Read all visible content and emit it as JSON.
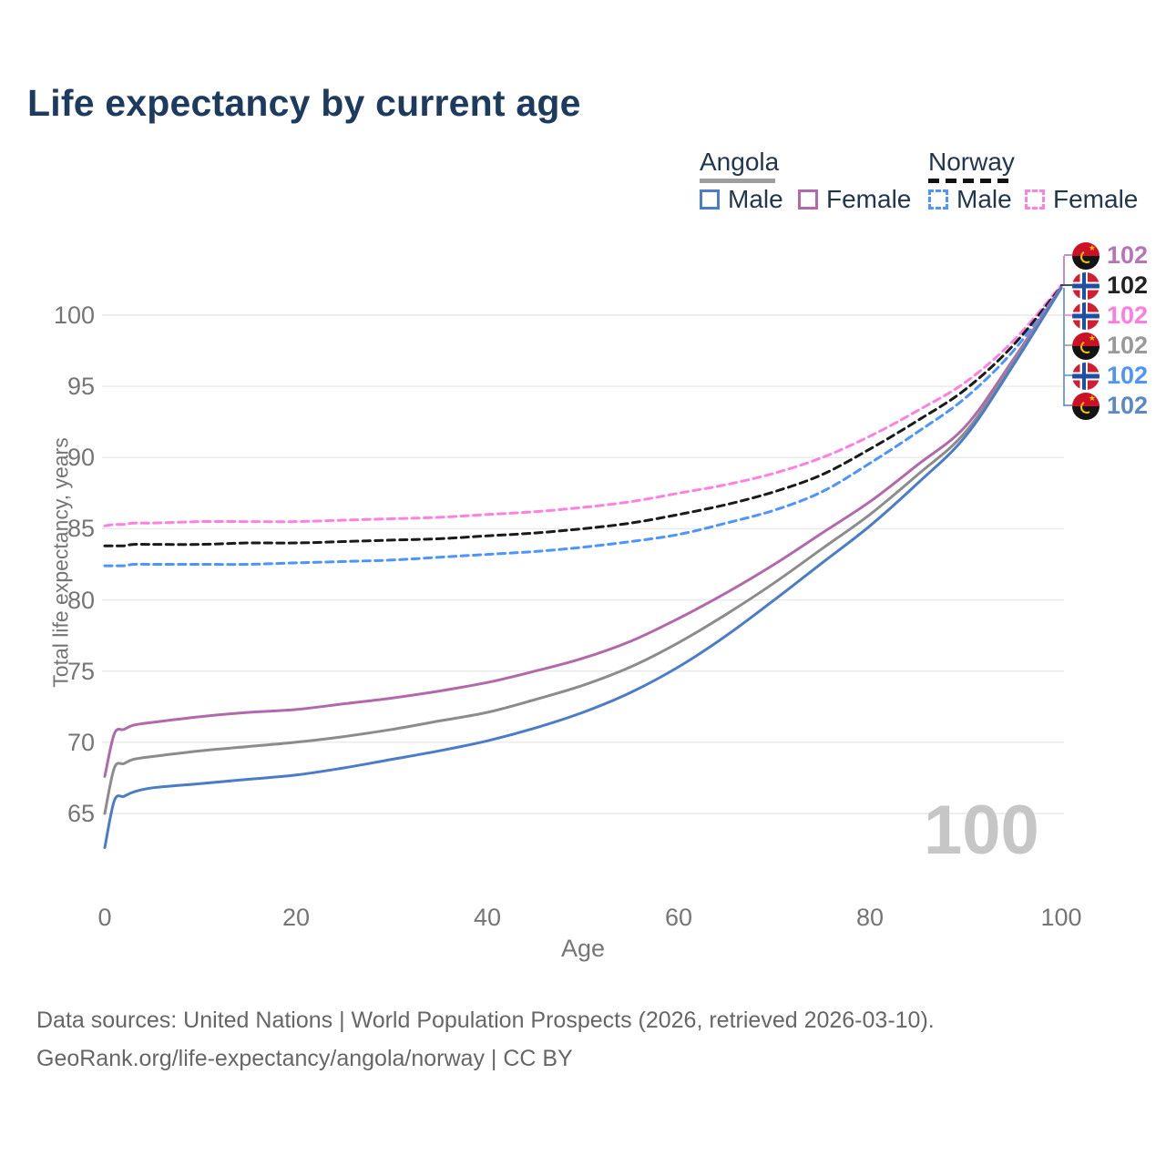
{
  "title": "Life expectancy by current age",
  "legend": {
    "angola": {
      "label": "Angola",
      "male": "Male",
      "female": "Female"
    },
    "norway": {
      "label": "Norway",
      "male": "Male",
      "female": "Female"
    }
  },
  "watermark": "100",
  "footer": {
    "line1": "Data sources: United Nations | World Population Prospects (2026, retrieved 2026-03-10).",
    "line2": "GeoRank.org/life-expectancy/angola/norway | CC BY"
  },
  "chart_data": {
    "type": "line",
    "title": "Life expectancy by current age",
    "xlabel": "Age",
    "ylabel": "Total life expectancy, years",
    "x_ticks": [
      0,
      20,
      40,
      60,
      80,
      100
    ],
    "y_ticks": [
      65,
      70,
      75,
      80,
      85,
      90,
      95,
      100
    ],
    "xlim": [
      0,
      100
    ],
    "ylim": [
      62,
      103
    ],
    "grid": "horizontal",
    "legend_position": "top-right",
    "ages": [
      0,
      1,
      2,
      3,
      5,
      10,
      15,
      20,
      25,
      30,
      35,
      40,
      45,
      50,
      55,
      60,
      65,
      70,
      75,
      80,
      85,
      90,
      95,
      100
    ],
    "series": [
      {
        "name": "Norway Female",
        "country": "Norway",
        "sex": "Female",
        "color": "#ff80df",
        "dash": true,
        "values": [
          85.2,
          85.3,
          85.3,
          85.4,
          85.4,
          85.5,
          85.5,
          85.5,
          85.6,
          85.7,
          85.8,
          86.0,
          86.2,
          86.5,
          86.9,
          87.5,
          88.1,
          88.9,
          90.0,
          91.5,
          93.3,
          95.3,
          98.2,
          102.1
        ]
      },
      {
        "name": "Norway Both sexes",
        "country": "Norway",
        "sex": "Both",
        "color": "#1a1a1a",
        "dash": true,
        "values": [
          83.8,
          83.8,
          83.8,
          83.9,
          83.9,
          83.9,
          84.0,
          84.0,
          84.1,
          84.2,
          84.3,
          84.5,
          84.7,
          85.0,
          85.4,
          86.0,
          86.7,
          87.6,
          88.8,
          90.6,
          92.6,
          94.8,
          97.9,
          102.0
        ]
      },
      {
        "name": "Norway Male",
        "country": "Norway",
        "sex": "Male",
        "color": "#4d94ff",
        "dash": true,
        "values": [
          82.4,
          82.4,
          82.4,
          82.5,
          82.5,
          82.5,
          82.5,
          82.6,
          82.7,
          82.8,
          83.0,
          83.2,
          83.4,
          83.7,
          84.1,
          84.6,
          85.4,
          86.3,
          87.6,
          89.6,
          91.8,
          94.2,
          97.5,
          101.9
        ]
      },
      {
        "name": "Angola Female",
        "country": "Angola",
        "sex": "Female",
        "color": "#b269ab",
        "dash": false,
        "values": [
          67.6,
          70.6,
          70.9,
          71.2,
          71.4,
          71.8,
          72.1,
          72.3,
          72.7,
          73.1,
          73.6,
          74.2,
          75.0,
          75.9,
          77.1,
          78.7,
          80.5,
          82.5,
          84.7,
          86.9,
          89.5,
          92.2,
          96.9,
          102.0
        ]
      },
      {
        "name": "Angola Both sexes",
        "country": "Angola",
        "sex": "Both",
        "color": "#8c8c8c",
        "dash": false,
        "values": [
          65.0,
          68.2,
          68.5,
          68.8,
          69.0,
          69.4,
          69.7,
          70.0,
          70.4,
          70.9,
          71.5,
          72.1,
          73.0,
          74.0,
          75.3,
          77.0,
          79.0,
          81.2,
          83.6,
          86.0,
          88.8,
          91.8,
          96.7,
          101.9
        ]
      },
      {
        "name": "Angola Male",
        "country": "Angola",
        "sex": "Male",
        "color": "#4a7cc7",
        "dash": false,
        "values": [
          62.6,
          65.9,
          66.2,
          66.5,
          66.8,
          67.1,
          67.4,
          67.7,
          68.2,
          68.8,
          69.4,
          70.1,
          71.0,
          72.1,
          73.5,
          75.3,
          77.5,
          80.0,
          82.6,
          85.2,
          88.2,
          91.5,
          96.5,
          101.9
        ]
      }
    ],
    "end_labels": [
      {
        "flag": "angola",
        "series": "Angola Female",
        "value": "102",
        "color": "#b874b8"
      },
      {
        "flag": "norway",
        "series": "Norway Both sexes",
        "value": "102",
        "color": "#222222"
      },
      {
        "flag": "norway",
        "series": "Norway Female",
        "value": "102",
        "color": "#ff7bdf"
      },
      {
        "flag": "angola",
        "series": "Angola Both sexes",
        "value": "102",
        "color": "#999999"
      },
      {
        "flag": "norway",
        "series": "Norway Male",
        "value": "102",
        "color": "#4d94ff"
      },
      {
        "flag": "angola",
        "series": "Angola Male",
        "value": "102",
        "color": "#5c88c8"
      }
    ]
  }
}
